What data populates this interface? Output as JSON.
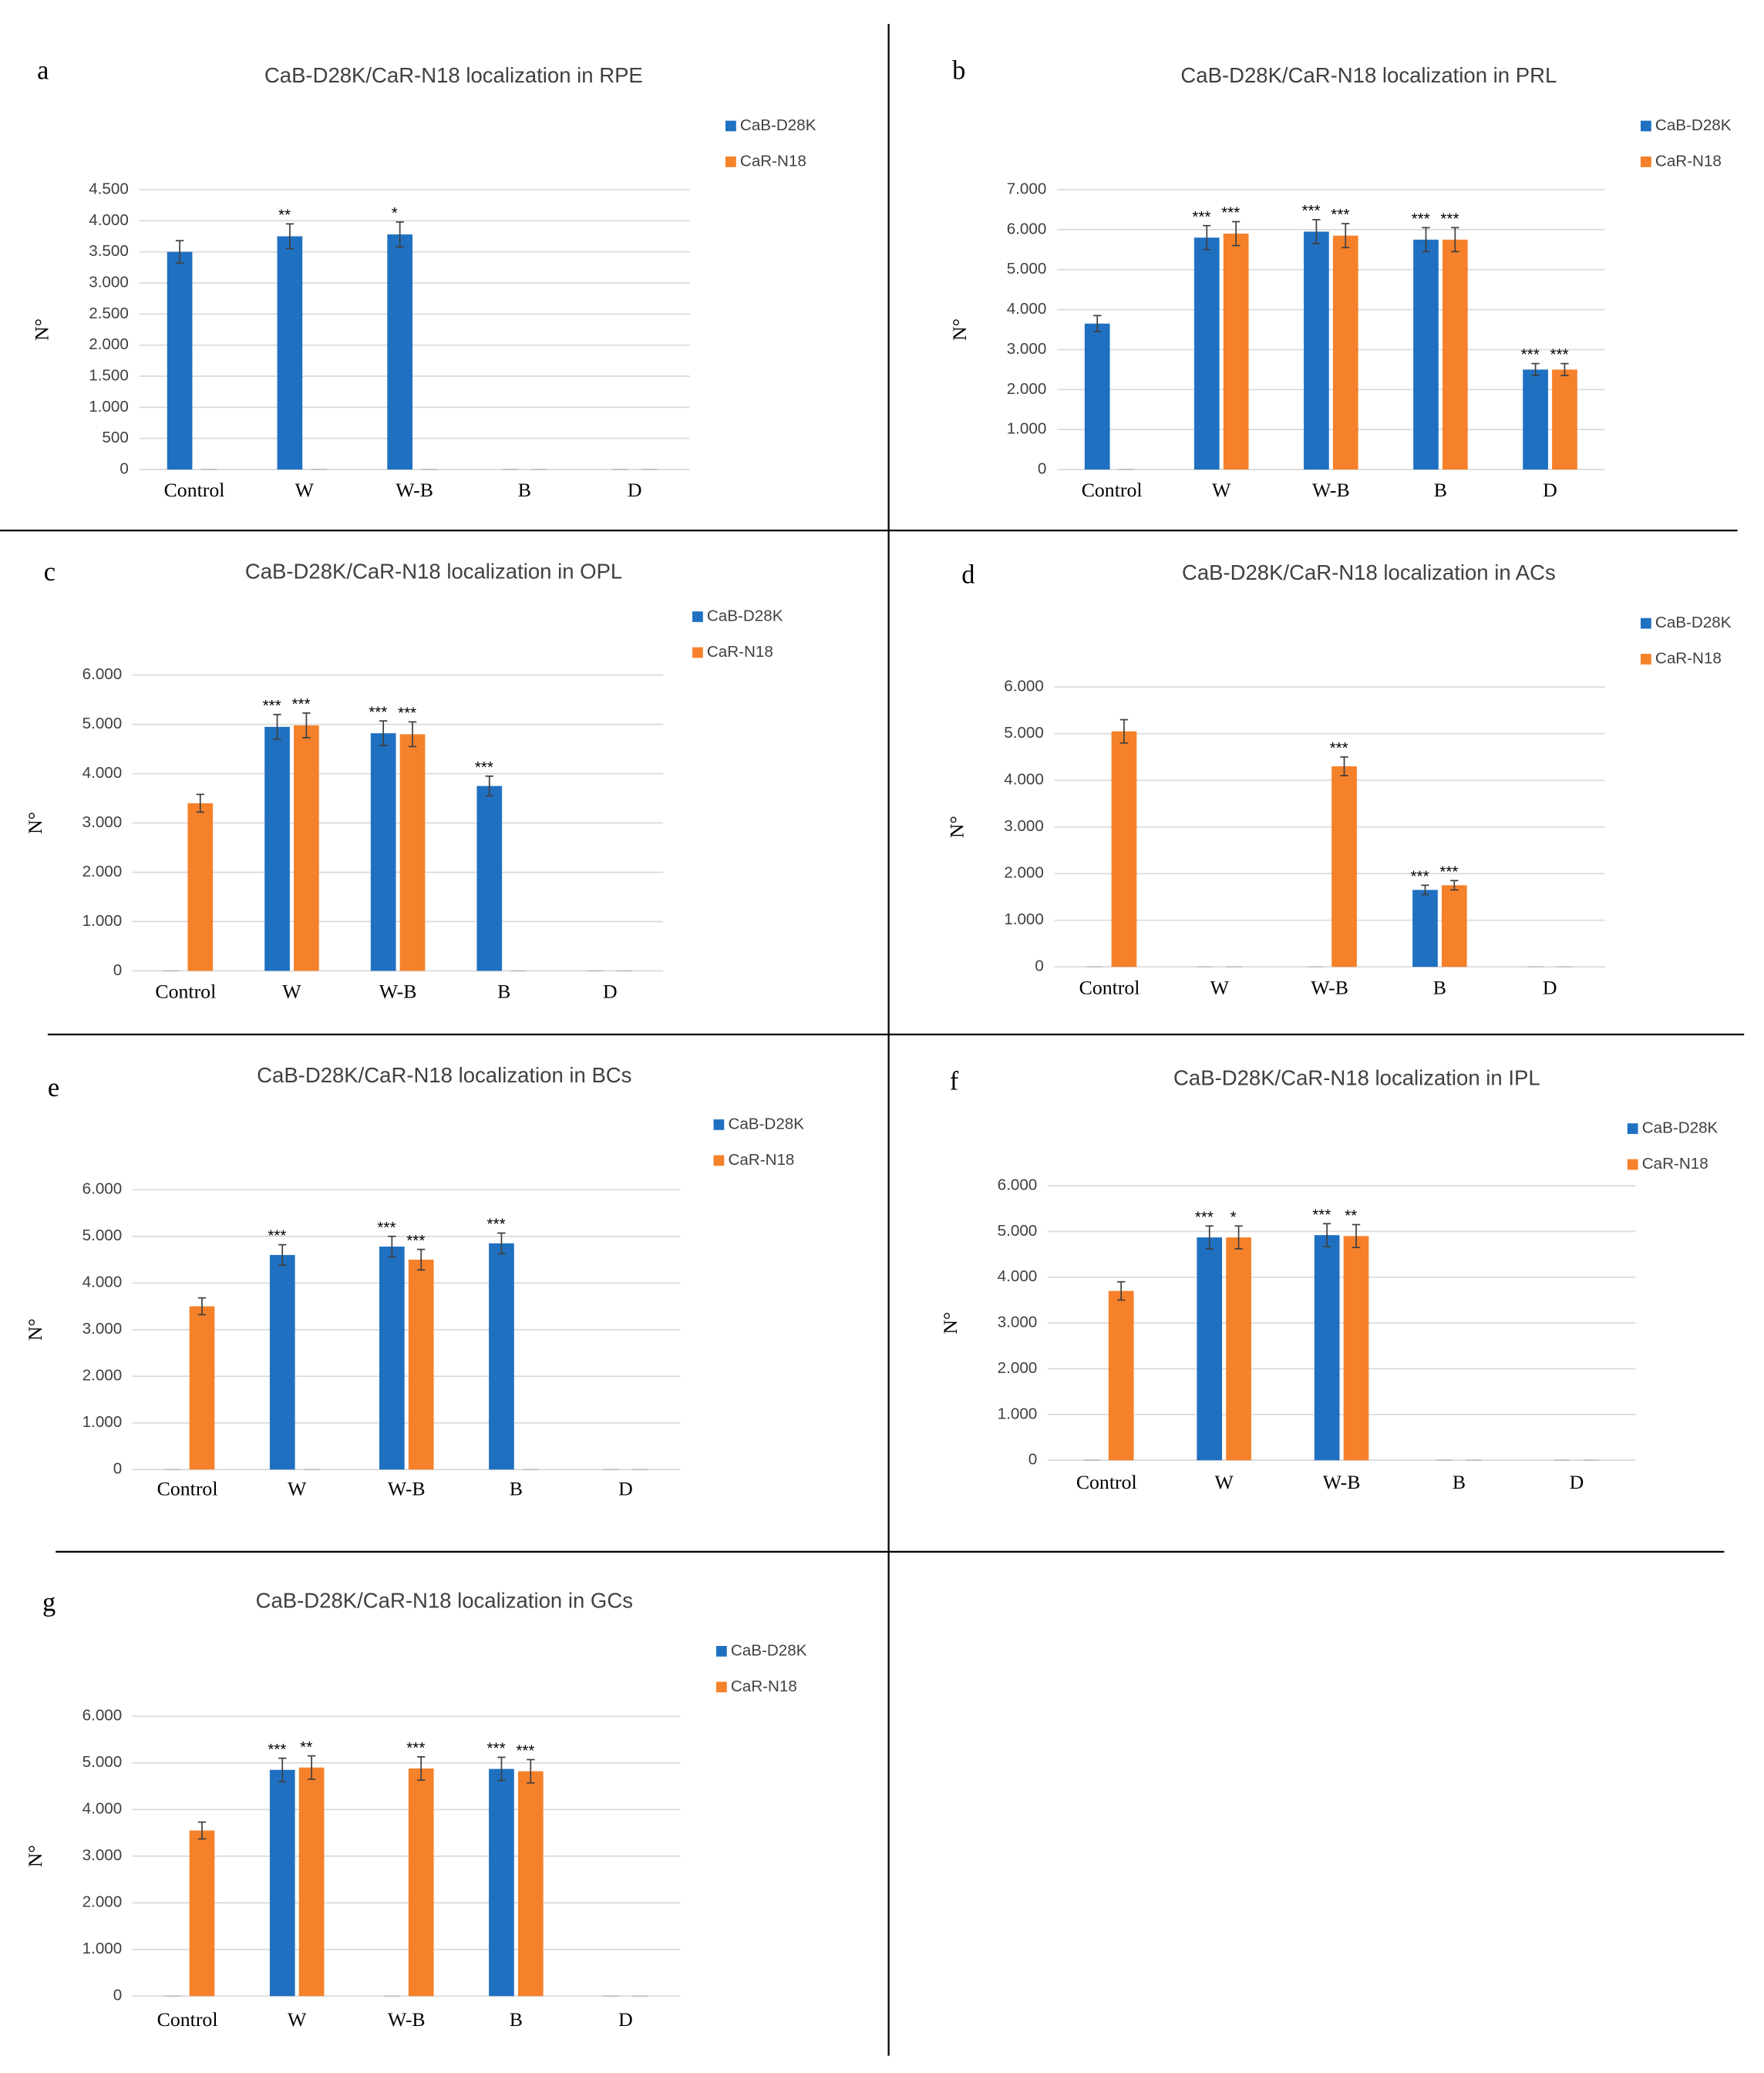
{
  "chart_data": [
    {
      "type": "bar",
      "panel": "a",
      "title": "CaB-D28K/CaR-N18 localization in RPE",
      "ylabel": "N°",
      "legend": "right",
      "categories": [
        "Control",
        "W",
        "W-B",
        "B",
        "D"
      ],
      "series": [
        {
          "name": "CaB-D28K",
          "color": "#1f70c1",
          "values": [
            3500,
            3750,
            3780,
            0,
            0
          ],
          "errors": [
            180,
            200,
            200,
            0,
            0
          ],
          "significance": [
            null,
            "**",
            "*",
            null,
            null
          ]
        },
        {
          "name": "CaR-N18",
          "color": "#f5812a",
          "values": [
            0,
            0,
            0,
            0,
            0
          ],
          "errors": [
            0,
            0,
            0,
            0,
            0
          ],
          "significance": [
            null,
            null,
            null,
            null,
            null
          ]
        }
      ],
      "ylim": [
        0,
        4500
      ],
      "yticks": [
        0,
        500,
        {
          "value": 1000,
          "label": "1.000"
        },
        {
          "value": 1500,
          "label": "1.500"
        },
        {
          "value": 2000,
          "label": "2.000"
        },
        {
          "value": 2500,
          "label": "2.500"
        },
        {
          "value": 3000,
          "label": "3.000"
        },
        {
          "value": 3500,
          "label": "3.500"
        },
        {
          "value": 4000,
          "label": "4.000"
        },
        {
          "value": 4500,
          "label": "4.500"
        }
      ],
      "grid": true
    },
    {
      "type": "bar",
      "panel": "b",
      "title": "CaB-D28K/CaR-N18 localization in PRL",
      "ylabel": "N°",
      "legend": "right",
      "categories": [
        "Control",
        "W",
        "W-B",
        "B",
        "D"
      ],
      "series": [
        {
          "name": "CaB-D28K",
          "color": "#1f70c1",
          "values": [
            3650,
            5800,
            5950,
            5750,
            2500
          ],
          "errors": [
            200,
            300,
            300,
            300,
            150
          ],
          "significance": [
            null,
            "***",
            "***",
            "***",
            "***"
          ]
        },
        {
          "name": "CaR-N18",
          "color": "#f5812a",
          "values": [
            0,
            5900,
            5850,
            5750,
            2500
          ],
          "errors": [
            0,
            300,
            300,
            300,
            150
          ],
          "significance": [
            null,
            "***",
            "***",
            "***",
            "***"
          ]
        }
      ],
      "ylim": [
        0,
        7000
      ],
      "yticks": [
        0,
        {
          "value": 1000,
          "label": "1.000"
        },
        {
          "value": 2000,
          "label": "2.000"
        },
        {
          "value": 3000,
          "label": "3.000"
        },
        {
          "value": 4000,
          "label": "4.000"
        },
        {
          "value": 5000,
          "label": "5.000"
        },
        {
          "value": 6000,
          "label": "6.000"
        },
        {
          "value": 7000,
          "label": "7.000"
        }
      ],
      "grid": true
    },
    {
      "type": "bar",
      "panel": "c",
      "title": "CaB-D28K/CaR-N18 localization in OPL",
      "ylabel": "N°",
      "legend": "right",
      "categories": [
        "Control",
        "W",
        "W-B",
        "B",
        "D"
      ],
      "series": [
        {
          "name": "CaB-D28K",
          "color": "#1f70c1",
          "values": [
            0,
            4950,
            4820,
            3750,
            0
          ],
          "errors": [
            0,
            250,
            250,
            200,
            0
          ],
          "significance": [
            null,
            "***",
            "***",
            "***",
            null
          ]
        },
        {
          "name": "CaR-N18",
          "color": "#f5812a",
          "values": [
            3400,
            4980,
            4800,
            0,
            0
          ],
          "errors": [
            180,
            250,
            250,
            0,
            0
          ],
          "significance": [
            null,
            "***",
            "***",
            null,
            null
          ]
        }
      ],
      "ylim": [
        0,
        6000
      ],
      "yticks": [
        0,
        {
          "value": 1000,
          "label": "1.000"
        },
        {
          "value": 2000,
          "label": "2.000"
        },
        {
          "value": 3000,
          "label": "3.000"
        },
        {
          "value": 4000,
          "label": "4.000"
        },
        {
          "value": 5000,
          "label": "5.000"
        },
        {
          "value": 6000,
          "label": "6.000"
        }
      ],
      "grid": true
    },
    {
      "type": "bar",
      "panel": "d",
      "title": "CaB-D28K/CaR-N18  localization in ACs",
      "ylabel": "N°",
      "legend": "right",
      "categories": [
        "Control",
        "W",
        "W-B",
        "B",
        "D"
      ],
      "series": [
        {
          "name": "CaB-D28K",
          "color": "#1f70c1",
          "values": [
            0,
            0,
            0,
            1650,
            0
          ],
          "errors": [
            0,
            0,
            0,
            100,
            0
          ],
          "significance": [
            null,
            null,
            null,
            "***",
            null
          ]
        },
        {
          "name": "CaR-N18",
          "color": "#f5812a",
          "values": [
            5050,
            0,
            4300,
            1750,
            0
          ],
          "errors": [
            250,
            0,
            200,
            100,
            0
          ],
          "significance": [
            null,
            null,
            "***",
            "***",
            null
          ]
        }
      ],
      "ylim": [
        0,
        6000
      ],
      "yticks": [
        0,
        {
          "value": 1000,
          "label": "1.000"
        },
        {
          "value": 2000,
          "label": "2.000"
        },
        {
          "value": 3000,
          "label": "3.000"
        },
        {
          "value": 4000,
          "label": "4.000"
        },
        {
          "value": 5000,
          "label": "5.000"
        },
        {
          "value": 6000,
          "label": "6.000"
        }
      ],
      "grid": true
    },
    {
      "type": "bar",
      "panel": "e",
      "title": "CaB-D28K/CaR-N18  localization in BCs",
      "ylabel": "N°",
      "legend": "right",
      "categories": [
        "Control",
        "W",
        "W-B",
        "B",
        "D"
      ],
      "series": [
        {
          "name": "CaB-D28K",
          "color": "#1f70c1",
          "values": [
            0,
            4600,
            4780,
            4850,
            0
          ],
          "errors": [
            0,
            220,
            220,
            220,
            0
          ],
          "significance": [
            null,
            "***",
            "***",
            "***",
            null
          ]
        },
        {
          "name": "CaR-N18",
          "color": "#f5812a",
          "values": [
            3500,
            0,
            4500,
            0,
            0
          ],
          "errors": [
            180,
            0,
            220,
            0,
            0
          ],
          "significance": [
            null,
            null,
            "***",
            null,
            null
          ]
        }
      ],
      "ylim": [
        0,
        6000
      ],
      "yticks": [
        0,
        {
          "value": 1000,
          "label": "1.000"
        },
        {
          "value": 2000,
          "label": "2.000"
        },
        {
          "value": 3000,
          "label": "3.000"
        },
        {
          "value": 4000,
          "label": "4.000"
        },
        {
          "value": 5000,
          "label": "5.000"
        },
        {
          "value": 6000,
          "label": "6.000"
        }
      ],
      "grid": true
    },
    {
      "type": "bar",
      "panel": "f",
      "title": "CaB-D28K/CaR-N18 localization in IPL",
      "ylabel": "N°",
      "legend": "right",
      "categories": [
        "Control",
        "W",
        "W-B",
        "B",
        "D"
      ],
      "series": [
        {
          "name": "CaB-D28K",
          "color": "#1f70c1",
          "values": [
            0,
            4870,
            4920,
            0,
            0
          ],
          "errors": [
            0,
            250,
            250,
            0,
            0
          ],
          "significance": [
            null,
            "***",
            "***",
            null,
            null
          ]
        },
        {
          "name": "CaR-N18",
          "color": "#f5812a",
          "values": [
            3700,
            4870,
            4900,
            0,
            0
          ],
          "errors": [
            200,
            250,
            250,
            0,
            0
          ],
          "significance": [
            null,
            "*",
            "**",
            null,
            null
          ]
        }
      ],
      "ylim": [
        0,
        6000
      ],
      "yticks": [
        0,
        {
          "value": 1000,
          "label": "1.000"
        },
        {
          "value": 2000,
          "label": "2.000"
        },
        {
          "value": 3000,
          "label": "3.000"
        },
        {
          "value": 4000,
          "label": "4.000"
        },
        {
          "value": 5000,
          "label": "5.000"
        },
        {
          "value": 6000,
          "label": "6.000"
        }
      ],
      "grid": true
    },
    {
      "type": "bar",
      "panel": "g",
      "title": "CaB-D28K/CaR-N18 localization in GCs",
      "ylabel": "N°",
      "legend": "right",
      "categories": [
        "Control",
        "W",
        "W-B",
        "B",
        "D"
      ],
      "series": [
        {
          "name": "CaB-D28K",
          "color": "#1f70c1",
          "values": [
            0,
            4850,
            0,
            4870,
            0
          ],
          "errors": [
            0,
            250,
            0,
            250,
            0
          ],
          "significance": [
            null,
            "***",
            null,
            "***",
            null
          ]
        },
        {
          "name": "CaR-N18",
          "color": "#f5812a",
          "values": [
            3550,
            4900,
            4880,
            4820,
            0
          ],
          "errors": [
            180,
            250,
            250,
            250,
            0
          ],
          "significance": [
            null,
            "**",
            "***",
            "***",
            null
          ]
        }
      ],
      "ylim": [
        0,
        6000
      ],
      "yticks": [
        0,
        {
          "value": 1000,
          "label": "1.000"
        },
        {
          "value": 2000,
          "label": "2.000"
        },
        {
          "value": 3000,
          "label": "3.000"
        },
        {
          "value": 4000,
          "label": "4.000"
        },
        {
          "value": 5000,
          "label": "5.000"
        },
        {
          "value": 6000,
          "label": "6.000"
        }
      ],
      "grid": true
    }
  ]
}
